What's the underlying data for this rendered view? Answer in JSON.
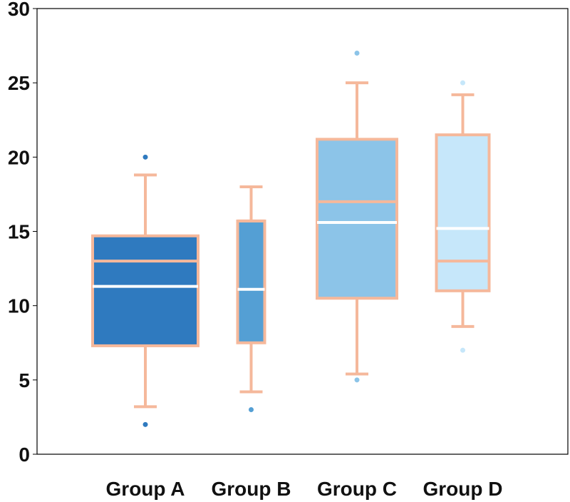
{
  "chart_data": {
    "type": "boxplot",
    "title": "",
    "xlabel": "",
    "ylabel": "",
    "ylim": [
      0,
      30
    ],
    "yticks": [
      0,
      5,
      10,
      15,
      20,
      25,
      30
    ],
    "categories": [
      "Group A",
      "Group B",
      "Group C",
      "Group D"
    ],
    "grid": false,
    "legend": "none",
    "boxes": [
      {
        "category": "Group A",
        "whisker_low": 3.2,
        "q1": 7.3,
        "median": 13.0,
        "mean": 11.3,
        "q3": 14.7,
        "whisker_high": 18.8,
        "outliers": [
          2.0,
          20.0
        ],
        "fill": "#2f7abf"
      },
      {
        "category": "Group B",
        "whisker_low": 4.2,
        "q1": 7.5,
        "median": 15.7,
        "mean": 11.1,
        "q3": 15.7,
        "whisker_high": 18.0,
        "outliers": [
          3.0
        ],
        "fill": "#549fd4"
      },
      {
        "category": "Group C",
        "whisker_low": 5.4,
        "q1": 10.5,
        "median": 17.0,
        "mean": 15.6,
        "q3": 21.2,
        "whisker_high": 25.0,
        "outliers": [
          5.0,
          27.0
        ],
        "fill": "#8cc4e8"
      },
      {
        "category": "Group D",
        "whisker_low": 8.6,
        "q1": 11.0,
        "median": 13.0,
        "mean": 15.2,
        "q3": 21.5,
        "whisker_high": 24.2,
        "outliers": [
          7.0,
          25.0
        ],
        "fill": "#c6e7fa"
      }
    ],
    "colors": {
      "outline": "#f5b89b",
      "mean_line": "#ffffff",
      "axis": "#000000"
    }
  }
}
